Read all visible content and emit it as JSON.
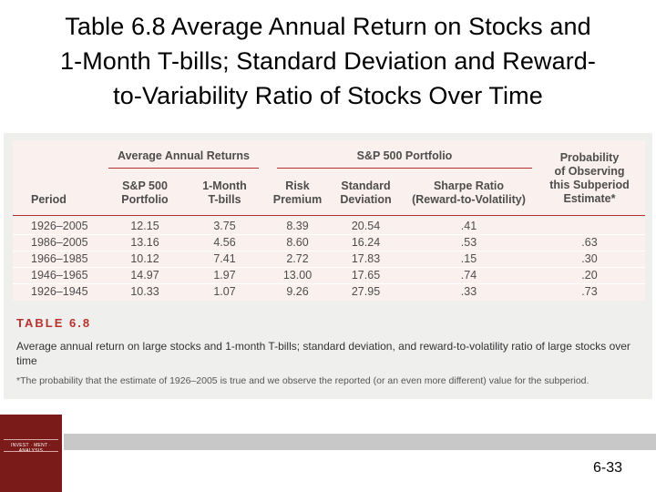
{
  "slide": {
    "title": "Table 6.8 Average Annual Return on Stocks and 1-Month T-bills; Standard Deviation and Reward-to-Variability Ratio of Stocks Over Time",
    "title_lines": [
      "Table 6.8 Average Annual Return on Stocks and",
      "1-Month T-bills; Standard Deviation and Reward-",
      "to-Variability Ratio of Stocks Over Time"
    ],
    "page_number": "6-33",
    "logo_text": "INVEST · MENT · ANALYSIS"
  },
  "table": {
    "group_headers": {
      "average_annual_returns": "Average Annual Returns",
      "sp500_portfolio": "S&P 500 Portfolio"
    },
    "columns": {
      "period": "Period",
      "sp500": [
        "S&P 500",
        "Portfolio"
      ],
      "tbills": [
        "1-Month",
        "T-bills"
      ],
      "risk_premium": [
        "Risk",
        "Premium"
      ],
      "std_dev": [
        "Standard",
        "Deviation"
      ],
      "sharpe": [
        "Sharpe Ratio",
        "(Reward-to-Volatility)"
      ],
      "probability": [
        "Probability",
        "of Observing",
        "this Subperiod",
        "Estimate*"
      ]
    },
    "rows": [
      {
        "period": "1926–2005",
        "sp500": "12.15",
        "tbills": "3.75",
        "risk_premium": "8.39",
        "std_dev": "20.54",
        "sharpe": ".41",
        "probability": ""
      },
      {
        "period": "1986–2005",
        "sp500": "13.16",
        "tbills": "4.56",
        "risk_premium": "8.60",
        "std_dev": "16.24",
        "sharpe": ".53",
        "probability": ".63"
      },
      {
        "period": "1966–1985",
        "sp500": "10.12",
        "tbills": "7.41",
        "risk_premium": "2.72",
        "std_dev": "17.83",
        "sharpe": ".15",
        "probability": ".30"
      },
      {
        "period": "1946–1965",
        "sp500": "14.97",
        "tbills": "1.97",
        "risk_premium": "13.00",
        "std_dev": "17.65",
        "sharpe": ".74",
        "probability": ".20"
      },
      {
        "period": "1926–1945",
        "sp500": "10.33",
        "tbills": "1.07",
        "risk_premium": "9.26",
        "std_dev": "27.95",
        "sharpe": ".33",
        "probability": ".73"
      }
    ],
    "caption_label": "TABLE 6.8",
    "caption_text": "Average annual return on large stocks and 1-month T-bills; standard deviation, and reward-to-volatility ratio of large stocks over time",
    "footnote": "*The probability that the estimate of 1926–2005 is true and we observe the reported (or an even more different) value for the subperiod."
  },
  "colors": {
    "accent_red": "#b8312f",
    "header_text": "#4d4d4d",
    "table_bg": "#faf0ee",
    "panel_bg": "#efefee",
    "logo_bg": "#7a1b19",
    "footer_bar": "#c8c8c8"
  }
}
